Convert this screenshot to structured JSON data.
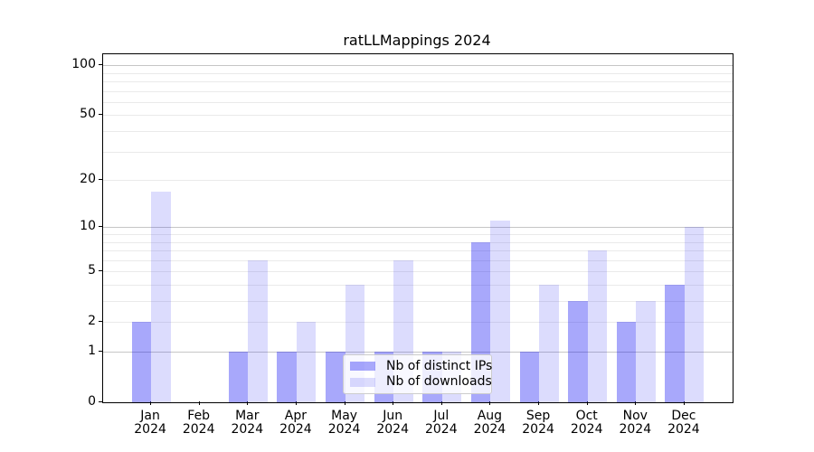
{
  "title": "ratLLMappings 2024",
  "chart_data": {
    "type": "bar",
    "title": "ratLLMappings 2024",
    "xlabel": "",
    "ylabel": "",
    "y_scale": "log1p",
    "ylim": [
      0,
      116
    ],
    "grid": true,
    "legend_position": "lower center",
    "categories": [
      "Jan",
      "Feb",
      "Mar",
      "Apr",
      "May",
      "Jun",
      "Jul",
      "Aug",
      "Sep",
      "Oct",
      "Nov",
      "Dec"
    ],
    "category_year": "2024",
    "series": [
      {
        "name": "Nb of distinct IPs",
        "values": [
          2,
          0,
          1,
          1,
          1,
          1,
          1,
          8,
          1,
          3,
          2,
          4
        ],
        "color": "rgba(15,15,243,0.36)"
      },
      {
        "name": "Nb of downloads",
        "values": [
          17,
          0,
          6,
          2,
          4,
          6,
          1,
          11,
          4,
          7,
          3,
          10
        ],
        "color": "rgba(15,15,243,0.145)"
      }
    ],
    "yticks": [
      0,
      1,
      2,
      5,
      10,
      20,
      50,
      100
    ],
    "major_gridlines": [
      1,
      10,
      100
    ],
    "minor_gridlines": [
      2,
      3,
      4,
      5,
      6,
      7,
      8,
      9,
      20,
      30,
      40,
      50,
      60,
      70,
      80,
      90
    ]
  },
  "legend": {
    "items": [
      {
        "label": "Nb of distinct IPs"
      },
      {
        "label": "Nb of downloads"
      }
    ]
  },
  "colors": {
    "bar_distinct_ips": "rgba(15,15,243,0.36)",
    "bar_downloads": "rgba(15,15,243,0.145)",
    "grid_major": "#c6c6c6",
    "grid_minor": "#eaeaea",
    "spine": "#000000",
    "background": "#ffffff",
    "legend_border": "#cccccc"
  }
}
